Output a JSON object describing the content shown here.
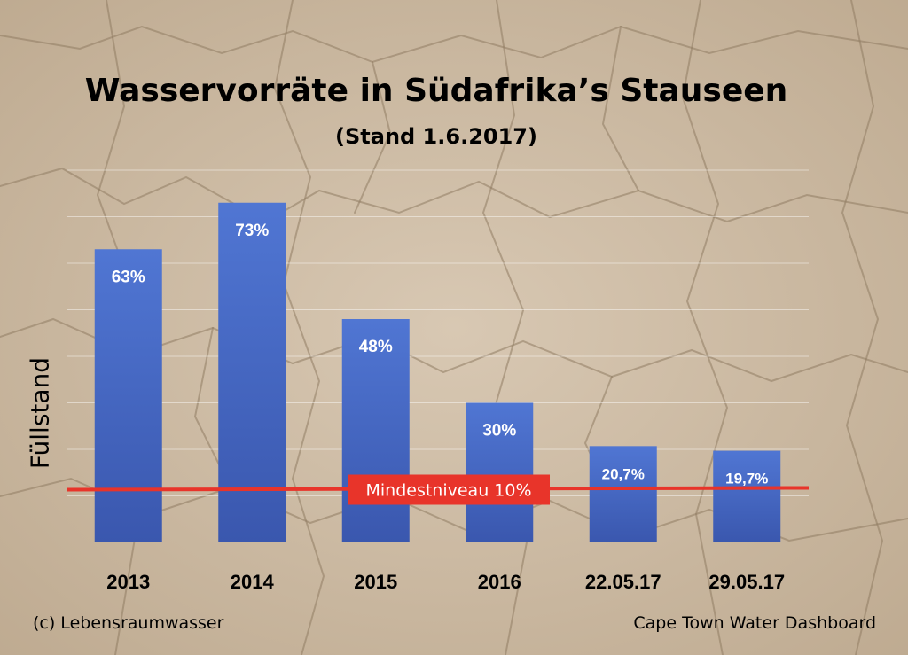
{
  "chart_data": {
    "type": "bar",
    "title": "Wasservorräte in Südafrika’s Stauseen",
    "subtitle": "(Stand 1.6.2017)",
    "xlabel": "",
    "ylabel": "Füllstand",
    "categories": [
      "2013",
      "2014",
      "2015",
      "2016",
      "22.05.17",
      "29.05.17"
    ],
    "values": [
      63,
      73,
      48,
      30,
      20.7,
      19.7
    ],
    "data_labels": [
      "63%",
      "73%",
      "48%",
      "30%",
      "20,7%",
      "19,7%"
    ],
    "ylim": [
      0,
      80
    ],
    "grid": true,
    "reference_line": {
      "value": 10,
      "label": "Mindestniveau 10%",
      "color": "#e8342a"
    },
    "colors": {
      "bar": "#4a6fc9",
      "bar_dark": "#3b59b0",
      "bar_text": "#ffffff",
      "background": "#c9b59c"
    }
  },
  "footer": {
    "left": "(c) Lebensraumwasser",
    "right": "Cape Town Water Dashboard"
  }
}
